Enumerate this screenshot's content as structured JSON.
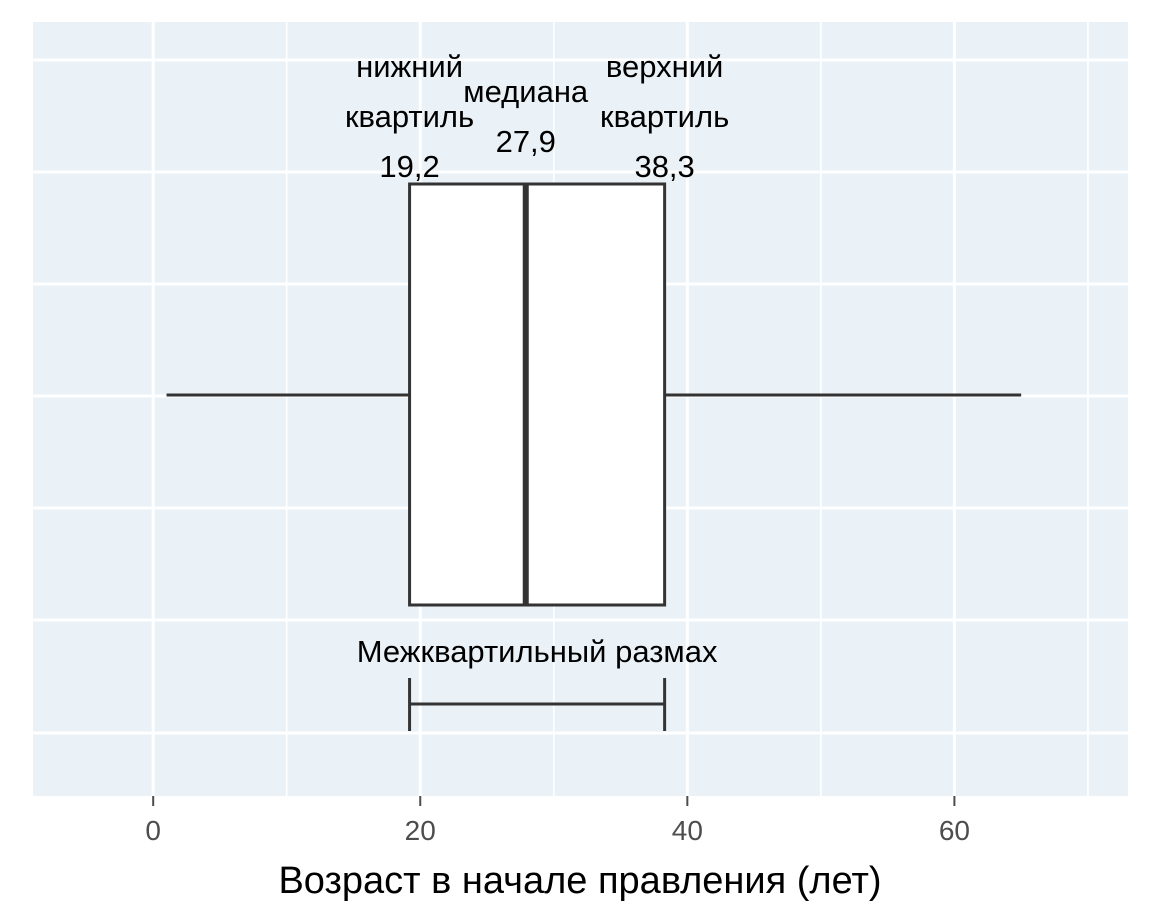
{
  "colors": {
    "panel_background": "#ebf2f7",
    "grid": "#ffffff",
    "box_fill": "#ffffff",
    "line": "#333333",
    "tick_label": "#4d4d4d"
  },
  "chart_data": {
    "type": "box",
    "orientation": "horizontal",
    "xlabel": "Возраст в начале правления (лет)",
    "xlim": [
      -9,
      73
    ],
    "x_ticks": [
      0,
      20,
      40,
      60
    ],
    "x_tick_labels": [
      "0",
      "20",
      "40",
      "60"
    ],
    "grid": true,
    "box": {
      "whisker_low": 1,
      "q1": 19.2,
      "median": 27.9,
      "q3": 38.3,
      "whisker_high": 65
    },
    "annotations": {
      "q1_label_line1": "нижний",
      "q1_label_line2": "квартиль",
      "q1_value": "19,2",
      "median_label": "медиана",
      "median_value": "27,9",
      "q3_label_line1": "верхний",
      "q3_label_line2": "квартиль",
      "q3_value": "38,3",
      "iqr_label": "Межквартильный размах"
    }
  }
}
